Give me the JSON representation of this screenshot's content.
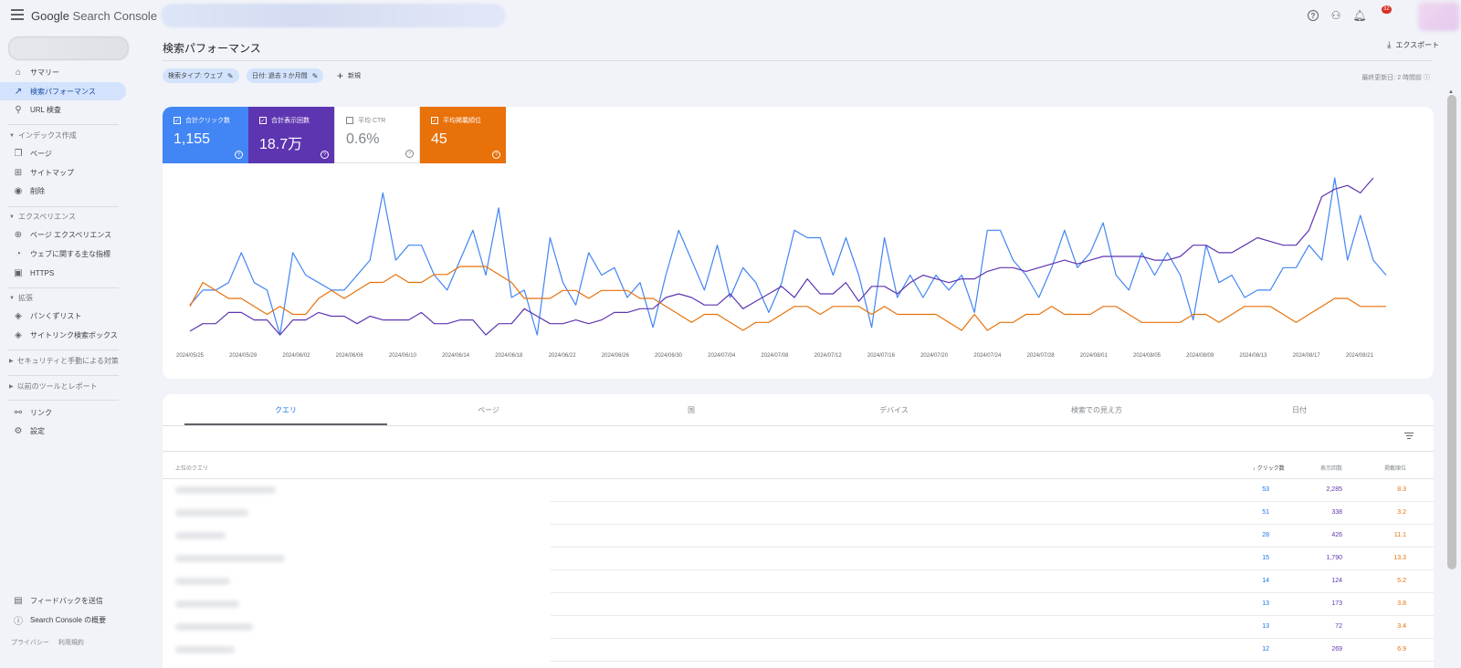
{
  "app": {
    "logo_google": "Google",
    "logo_product": "Search Console",
    "notification_count": "32"
  },
  "sidebar": {
    "items_top": [
      {
        "label": "サマリー",
        "icon": "home-icon",
        "glyph": "⌂"
      },
      {
        "label": "検索パフォーマンス",
        "icon": "trending-up-icon",
        "glyph": "↗",
        "active": true
      },
      {
        "label": "URL 検査",
        "icon": "search-icon",
        "glyph": "⚲"
      }
    ],
    "section_index": "インデックス作成",
    "items_index": [
      {
        "label": "ページ",
        "icon": "pages-icon",
        "glyph": "❐"
      },
      {
        "label": "サイトマップ",
        "icon": "sitemap-icon",
        "glyph": "⊞"
      },
      {
        "label": "削除",
        "icon": "visibility-off-icon",
        "glyph": "◉"
      }
    ],
    "section_experience": "エクスペリエンス",
    "items_experience": [
      {
        "label": "ページ エクスペリエンス",
        "icon": "add-circle-icon",
        "glyph": "⊕"
      },
      {
        "label": "ウェブに関する主な指標",
        "icon": "speed-icon",
        "glyph": "◔"
      },
      {
        "label": "HTTPS",
        "icon": "lock-icon",
        "glyph": "🔒︎"
      }
    ],
    "section_enhancements": "拡張",
    "items_enhancements": [
      {
        "label": "パンくずリスト",
        "icon": "layers-icon",
        "glyph": "◈"
      },
      {
        "label": "サイトリンク検索ボックス",
        "icon": "layers-icon",
        "glyph": "◈"
      }
    ],
    "section_security": "セキュリティと手動による対策",
    "section_legacy": "以前のツールとレポート",
    "items_bottom": [
      {
        "label": "リンク",
        "icon": "links-icon",
        "glyph": "⚯"
      },
      {
        "label": "設定",
        "icon": "settings-icon",
        "glyph": "⚙"
      }
    ],
    "feedback": "フィードバックを送信",
    "about": "Search Console の概要",
    "privacy": "プライバシー",
    "terms": "利用規約"
  },
  "header": {
    "title": "検索パフォーマンス",
    "export": "エクスポート",
    "chip_search_type": "検索タイプ: ウェブ",
    "chip_date": "日付: 過去 3 か月間",
    "new_button": "新規",
    "last_updated": "最終更新日: 2 時間前"
  },
  "metrics": {
    "clicks": {
      "label": "合計クリック数",
      "value": "1,155"
    },
    "impressions": {
      "label": "合計表示回数",
      "value": "18.7万"
    },
    "ctr": {
      "label": "平均 CTR",
      "value": "0.6%"
    },
    "position": {
      "label": "平均掲載順位",
      "value": "45"
    }
  },
  "chart_data": {
    "type": "line",
    "x_tick_labels": [
      "2024/05/25",
      "2024/05/29",
      "2024/06/02",
      "2024/06/06",
      "2024/06/10",
      "2024/06/14",
      "2024/06/18",
      "2024/06/22",
      "2024/06/26",
      "2024/06/30",
      "2024/07/04",
      "2024/07/08",
      "2024/07/12",
      "2024/07/16",
      "2024/07/20",
      "2024/07/24",
      "2024/07/28",
      "2024/08/01",
      "2024/08/05",
      "2024/08/09",
      "2024/08/13",
      "2024/08/17",
      "2024/08/21"
    ],
    "x_start": "2024/05/25",
    "x_end": "2024/08/23",
    "grid": false,
    "legend": "none",
    "series": [
      {
        "color": "#4285f4",
        "values": [
          8,
          10,
          10,
          11,
          15,
          11,
          10,
          4,
          15,
          12,
          11,
          10,
          10,
          12,
          14,
          23,
          14,
          16,
          16,
          12,
          10,
          14,
          18,
          12,
          21,
          9,
          10,
          4,
          17,
          11,
          8,
          15,
          12,
          13,
          9,
          11,
          5,
          12,
          18,
          14,
          10,
          16,
          9,
          13,
          11,
          7,
          11,
          18,
          17,
          17,
          12,
          17,
          12,
          5,
          17,
          9,
          12,
          9,
          12,
          10,
          12,
          7,
          18,
          18,
          14,
          12,
          9,
          13,
          18,
          13,
          15,
          19,
          12,
          10,
          15,
          12,
          15,
          12,
          6,
          16,
          11,
          12,
          9,
          10,
          10,
          13,
          13,
          16,
          14,
          25,
          14,
          20,
          14,
          12
        ]
      },
      {
        "color": "#5e35b1",
        "values": [
          150,
          160,
          160,
          175,
          175,
          165,
          165,
          145,
          165,
          165,
          175,
          170,
          170,
          160,
          170,
          165,
          165,
          165,
          175,
          160,
          160,
          165,
          165,
          145,
          160,
          160,
          180,
          170,
          160,
          160,
          165,
          160,
          165,
          175,
          175,
          180,
          180,
          195,
          200,
          195,
          185,
          185,
          200,
          180,
          190,
          200,
          210,
          195,
          220,
          200,
          200,
          215,
          190,
          210,
          210,
          200,
          215,
          225,
          220,
          215,
          220,
          220,
          230,
          235,
          235,
          230,
          235,
          240,
          245,
          240,
          245,
          250,
          250,
          250,
          250,
          245,
          245,
          250,
          265,
          265,
          255,
          255,
          265,
          275,
          270,
          265,
          265,
          285,
          330,
          340,
          345,
          335,
          355
        ]
      },
      {
        "color": "#e8710a",
        "values": [
          47,
          44,
          45,
          46,
          46,
          47,
          48,
          47,
          48,
          48,
          46,
          45,
          46,
          45,
          44,
          44,
          43,
          44,
          44,
          43,
          43,
          42,
          42,
          42,
          43,
          44,
          46,
          46,
          46,
          45,
          45,
          46,
          45,
          45,
          45,
          46,
          46,
          47,
          48,
          49,
          48,
          48,
          49,
          50,
          49,
          49,
          48,
          47,
          47,
          48,
          47,
          47,
          47,
          48,
          47,
          48,
          48,
          48,
          48,
          49,
          50,
          48,
          50,
          49,
          49,
          48,
          48,
          47,
          48,
          48,
          48,
          47,
          47,
          48,
          49,
          49,
          49,
          49,
          48,
          48,
          49,
          48,
          47,
          47,
          47,
          48,
          49,
          48,
          47,
          46,
          46,
          47,
          47,
          47
        ]
      }
    ]
  },
  "table": {
    "tabs": [
      "クエリ",
      "ページ",
      "国",
      "デバイス",
      "検索での見え方",
      "日付"
    ],
    "col_query": "上位のクエリ",
    "col_clicks": "クリック数",
    "col_impressions": "表示回数",
    "col_position": "掲載順位",
    "rows": [
      {
        "clicks": "53",
        "impressions": "2,285",
        "position": "8.3"
      },
      {
        "clicks": "51",
        "impressions": "338",
        "position": "3.2"
      },
      {
        "clicks": "28",
        "impressions": "426",
        "position": "11.1"
      },
      {
        "clicks": "15",
        "impressions": "1,790",
        "position": "13.3"
      },
      {
        "clicks": "14",
        "impressions": "124",
        "position": "5.2"
      },
      {
        "clicks": "13",
        "impressions": "173",
        "position": "3.8"
      },
      {
        "clicks": "13",
        "impressions": "72",
        "position": "3.4"
      },
      {
        "clicks": "12",
        "impressions": "269",
        "position": "6.9"
      }
    ]
  }
}
